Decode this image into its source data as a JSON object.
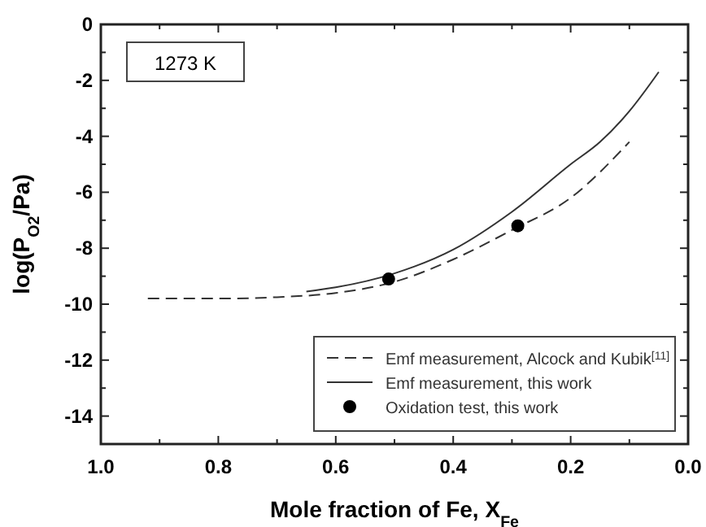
{
  "chart_data": {
    "type": "line",
    "xlabel": "Mole fraction of Fe, X$_{Fe}$",
    "ylabel": "log(P$_{O2}$/Pa)",
    "xlim": [
      1.0,
      0.0
    ],
    "ylim": [
      -15,
      0
    ],
    "xticks": [
      {
        "value": 1.0,
        "label": "1.0"
      },
      {
        "value": 0.9,
        "label": null
      },
      {
        "value": 0.8,
        "label": "0.8"
      },
      {
        "value": 0.7,
        "label": null
      },
      {
        "value": 0.6,
        "label": "0.6"
      },
      {
        "value": 0.5,
        "label": null
      },
      {
        "value": 0.4,
        "label": "0.4"
      },
      {
        "value": 0.3,
        "label": null
      },
      {
        "value": 0.2,
        "label": "0.2"
      },
      {
        "value": 0.1,
        "label": null
      },
      {
        "value": 0.0,
        "label": "0.0"
      }
    ],
    "yticks": [
      0,
      {
        "value": -1,
        "label": null
      },
      -2,
      {
        "value": -3,
        "label": null
      },
      -4,
      {
        "value": -5,
        "label": null
      },
      -6,
      {
        "value": -7,
        "label": null
      },
      -8,
      {
        "value": -9,
        "label": null
      },
      -10,
      {
        "value": -11,
        "label": null
      },
      -12,
      {
        "value": -13,
        "label": null
      },
      -14,
      {
        "value": -15,
        "label": null
      }
    ],
    "grid": false,
    "legend": "bottom right",
    "annotations": [
      "1273 K"
    ],
    "series": [
      {
        "name": "Emf measurement, Alcock and Kubik$^{[11]}$",
        "color": "#333333",
        "line_style": "dashed",
        "marker": "none",
        "x": [
          0.92,
          0.8,
          0.7,
          0.6,
          0.5,
          0.4,
          0.3,
          0.2,
          0.1
        ],
        "values": [
          -9.8,
          -9.8,
          -9.75,
          -9.6,
          -9.2,
          -8.4,
          -7.35,
          -6.2,
          -4.2
        ]
      },
      {
        "name": "Emf measurement, this work",
        "color": "#333333",
        "line_style": "solid",
        "marker": "none",
        "x": [
          0.65,
          0.6,
          0.5,
          0.4,
          0.3,
          0.2,
          0.15,
          0.1,
          0.05
        ],
        "values": [
          -9.55,
          -9.4,
          -8.9,
          -8.05,
          -6.7,
          -5.0,
          -4.2,
          -3.1,
          -1.7
        ]
      },
      {
        "name": "Oxidation test, this work",
        "type": "scatter",
        "color": "#000000",
        "marker": "circle",
        "x": [
          0.51,
          0.29
        ],
        "values": [
          -9.1,
          -7.2
        ]
      }
    ]
  }
}
